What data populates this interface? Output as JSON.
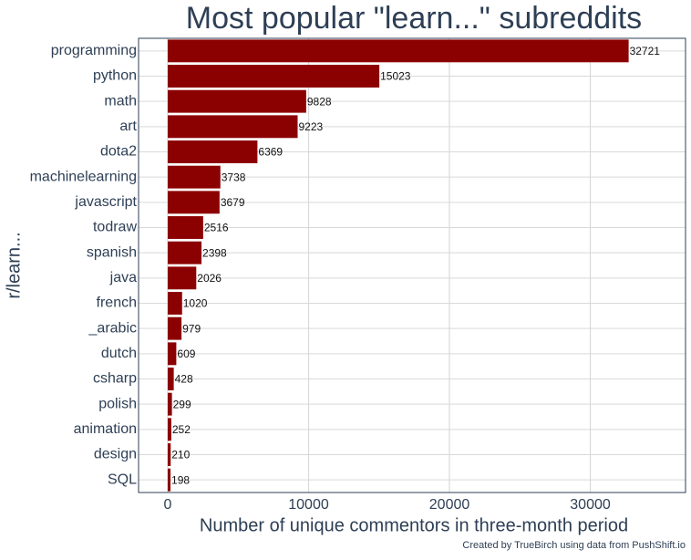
{
  "chart_data": {
    "type": "bar",
    "orientation": "horizontal",
    "title": "Most popular \"learn...\" subreddits",
    "x_label": "Number of unique commentors in three-month period",
    "y_label": "r/learn...",
    "caption": "Created by TrueBirch using data from PushShift.io",
    "categories": [
      "programming",
      "python",
      "math",
      "art",
      "dota2",
      "machinelearning",
      "javascript",
      "todraw",
      "spanish",
      "java",
      "french",
      "_arabic",
      "dutch",
      "csharp",
      "polish",
      "animation",
      "design",
      "SQL"
    ],
    "values": [
      32721,
      15023,
      9828,
      9223,
      6369,
      3738,
      3679,
      2516,
      2398,
      2026,
      1020,
      979,
      609,
      428,
      299,
      252,
      210,
      198
    ],
    "color": "#8b0000",
    "xlim": [
      -2070,
      36760
    ],
    "xticks": [
      0,
      10000,
      20000,
      30000
    ],
    "grid": true
  }
}
